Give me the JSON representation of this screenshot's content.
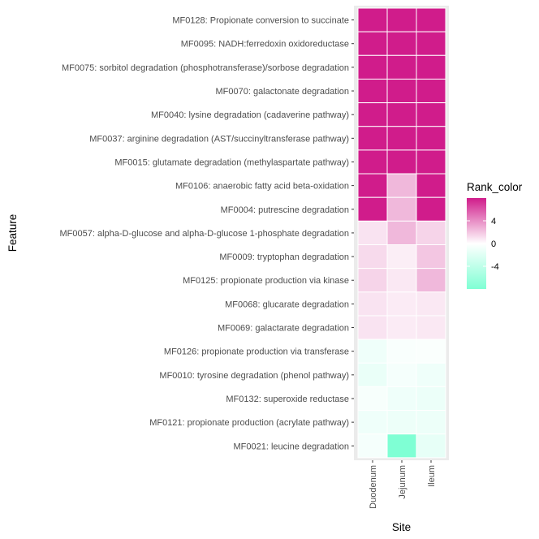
{
  "chart_data": {
    "type": "heatmap",
    "xlabel": "Site",
    "ylabel": "Feature",
    "x_categories": [
      "Duodenum",
      "Jejunum",
      "Ileum"
    ],
    "y_categories": [
      "MF0128: Propionate conversion to succinate",
      "MF0095: NADH:ferredoxin oxidoreductase",
      "MF0075: sorbitol degradation (phosphotransferase)/sorbose degradation",
      "MF0070: galactonate degradation",
      "MF0040: lysine degradation (cadaverine pathway)",
      "MF0037: arginine degradation (AST/succinyltransferase pathway)",
      "MF0015: glutamate degradation (methylaspartate pathway)",
      "MF0106: anaerobic fatty acid beta-oxidation",
      "MF0004: putrescine degradation",
      "MF0057: alpha-D-glucose and alpha-D-glucose 1-phosphate degradation",
      "MF0009: tryptophan degradation",
      "MF0125: propionate production via kinase",
      "MF0068: glucarate degradation",
      "MF0069: galactarate degradation",
      "MF0126: propionate production via transferase",
      "MF0010: tyrosine degradation (phenol pathway)",
      "MF0132: superoxide reductase",
      "MF0121: propionate production (acrylate pathway)",
      "MF0021: leucine degradation"
    ],
    "values": [
      [
        8,
        8,
        8
      ],
      [
        8,
        8,
        8
      ],
      [
        8,
        8,
        8
      ],
      [
        8,
        8,
        8
      ],
      [
        8,
        8,
        8
      ],
      [
        8,
        8,
        8
      ],
      [
        8,
        8,
        8
      ],
      [
        8,
        2.5,
        8
      ],
      [
        8,
        2.5,
        8
      ],
      [
        1,
        2.5,
        1.5
      ],
      [
        1.3,
        0.6,
        2
      ],
      [
        1.5,
        0.8,
        2.5
      ],
      [
        1,
        0.7,
        0.8
      ],
      [
        1,
        0.7,
        0.8
      ],
      [
        -1,
        -0.4,
        -0.3
      ],
      [
        -1.3,
        -0.6,
        -1
      ],
      [
        -0.5,
        -1,
        -1.2
      ],
      [
        -1,
        -1.1,
        -1.1
      ],
      [
        -0.6,
        -8,
        -1.5
      ]
    ],
    "legend": {
      "title": "Rank_color",
      "position": "right",
      "breaks": [
        4,
        0,
        -4
      ],
      "break_labels": [
        "4",
        "0",
        "-4"
      ],
      "limits": [
        -8,
        8
      ],
      "colors": {
        "low": "#7fffd4",
        "mid": "#ffffff",
        "high": "#d01c8b"
      }
    },
    "panel_background": "#ebebeb",
    "grid": true
  }
}
